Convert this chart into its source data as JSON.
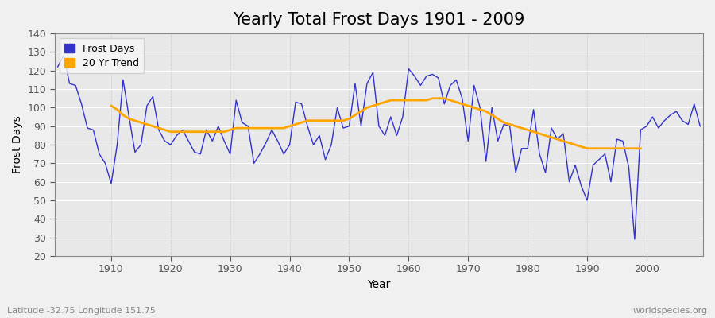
{
  "title": "Yearly Total Frost Days 1901 - 2009",
  "xlabel": "Year",
  "ylabel": "Frost Days",
  "subtitle": "Latitude -32.75 Longitude 151.75",
  "watermark": "worldspecies.org",
  "years": [
    1901,
    1902,
    1903,
    1904,
    1905,
    1906,
    1907,
    1908,
    1909,
    1910,
    1911,
    1912,
    1913,
    1914,
    1915,
    1916,
    1917,
    1918,
    1919,
    1920,
    1921,
    1922,
    1923,
    1924,
    1925,
    1926,
    1927,
    1928,
    1929,
    1930,
    1931,
    1932,
    1933,
    1934,
    1935,
    1936,
    1937,
    1938,
    1939,
    1940,
    1941,
    1942,
    1943,
    1944,
    1945,
    1946,
    1947,
    1948,
    1949,
    1950,
    1951,
    1952,
    1953,
    1954,
    1955,
    1956,
    1957,
    1958,
    1959,
    1960,
    1961,
    1962,
    1963,
    1964,
    1965,
    1966,
    1967,
    1968,
    1969,
    1970,
    1971,
    1972,
    1973,
    1974,
    1975,
    1976,
    1977,
    1978,
    1979,
    1980,
    1981,
    1982,
    1983,
    1984,
    1985,
    1986,
    1987,
    1988,
    1989,
    1990,
    1991,
    1992,
    1993,
    1994,
    1995,
    1996,
    1997,
    1998,
    1999,
    2000,
    2001,
    2002,
    2003,
    2004,
    2005,
    2006,
    2007,
    2008,
    2009
  ],
  "frost_days": [
    122,
    128,
    113,
    112,
    102,
    89,
    88,
    75,
    70,
    59,
    80,
    115,
    95,
    76,
    80,
    101,
    106,
    88,
    82,
    80,
    85,
    88,
    82,
    76,
    75,
    88,
    82,
    90,
    82,
    75,
    104,
    92,
    90,
    70,
    75,
    81,
    88,
    82,
    75,
    80,
    103,
    102,
    90,
    80,
    85,
    72,
    80,
    100,
    89,
    90,
    113,
    90,
    113,
    119,
    90,
    85,
    95,
    85,
    95,
    121,
    117,
    112,
    117,
    118,
    116,
    102,
    112,
    115,
    105,
    82,
    112,
    100,
    71,
    100,
    82,
    91,
    90,
    65,
    78,
    78,
    99,
    75,
    65,
    89,
    83,
    86,
    60,
    69,
    58,
    50,
    69,
    72,
    75,
    60,
    83,
    82,
    68,
    29,
    88,
    90,
    95,
    89,
    93,
    96,
    98,
    93,
    91,
    102,
    90
  ],
  "trend_years": [
    1910,
    1911,
    1912,
    1913,
    1914,
    1915,
    1916,
    1917,
    1918,
    1919,
    1920,
    1921,
    1922,
    1923,
    1924,
    1925,
    1926,
    1927,
    1928,
    1929,
    1930,
    1931,
    1932,
    1933,
    1934,
    1935,
    1936,
    1937,
    1938,
    1939,
    1940,
    1941,
    1942,
    1943,
    1944,
    1945,
    1946,
    1947,
    1948,
    1949,
    1950,
    1951,
    1952,
    1953,
    1954,
    1955,
    1956,
    1957,
    1958,
    1959,
    1960,
    1961,
    1962,
    1963,
    1964,
    1965,
    1966,
    1967,
    1968,
    1969,
    1970,
    1971,
    1972,
    1973,
    1974,
    1975,
    1976,
    1977,
    1978,
    1979,
    1980,
    1981,
    1982,
    1983,
    1984,
    1985,
    1986,
    1987,
    1988,
    1989,
    1990,
    1991,
    1992,
    1993,
    1994,
    1995,
    1996,
    1997,
    1998,
    1999
  ],
  "trend_values": [
    101,
    99,
    96,
    94,
    93,
    92,
    91,
    90,
    89,
    88,
    87,
    87,
    87,
    87,
    87,
    87,
    87,
    87,
    87,
    87,
    88,
    89,
    89,
    89,
    89,
    89,
    89,
    89,
    89,
    89,
    90,
    91,
    92,
    93,
    93,
    93,
    93,
    93,
    93,
    93,
    94,
    96,
    98,
    100,
    101,
    102,
    103,
    104,
    104,
    104,
    104,
    104,
    104,
    104,
    105,
    105,
    105,
    104,
    103,
    102,
    101,
    100,
    99,
    98,
    96,
    94,
    92,
    91,
    90,
    89,
    88,
    87,
    86,
    85,
    84,
    83,
    82,
    81,
    80,
    79,
    78,
    78,
    78,
    78,
    78,
    78,
    78,
    78,
    78,
    78
  ],
  "line_color": "#3333cc",
  "trend_color": "#ffa500",
  "fig_bg_color": "#f0f0f0",
  "plot_bg_color": "#e8e8e8",
  "grid_color_h": "#ffffff",
  "grid_color_v": "#cccccc",
  "ylim": [
    20,
    140
  ],
  "yticks": [
    20,
    30,
    40,
    50,
    60,
    70,
    80,
    90,
    100,
    110,
    120,
    130,
    140
  ],
  "xticks": [
    1910,
    1920,
    1930,
    1940,
    1950,
    1960,
    1970,
    1980,
    1990,
    2000
  ],
  "title_fontsize": 15,
  "axis_fontsize": 10,
  "tick_fontsize": 9,
  "legend_fontsize": 9,
  "subtitle_color": "#888888",
  "watermark_color": "#888888"
}
